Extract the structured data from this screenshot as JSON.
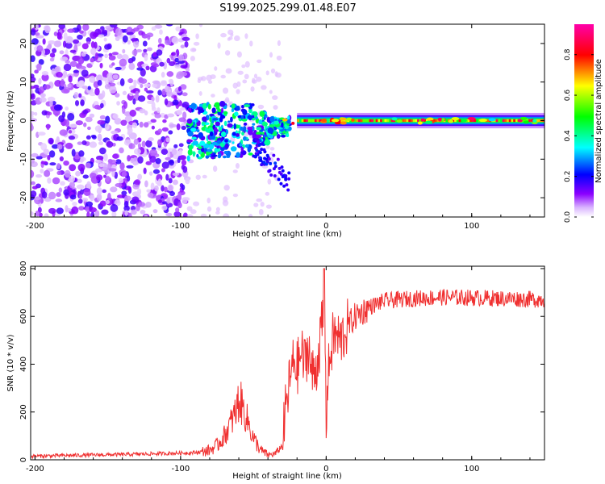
{
  "title": "S199.2025.299.01.48.E07",
  "chart_data": [
    {
      "type": "heatmap",
      "xlabel": "Height of straight line (km)",
      "ylabel": "Frequency (Hz)",
      "xlim": [
        -203,
        150
      ],
      "ylim": [
        -25,
        25
      ],
      "xticks": [
        -200,
        -100,
        0,
        100
      ],
      "xtick_labels": [
        "-200",
        "-100",
        "0",
        "100"
      ],
      "yticks": [
        -20,
        -10,
        0,
        10,
        20
      ],
      "ytick_labels": [
        "-20",
        "-10",
        "0",
        "10",
        "20"
      ],
      "colorbar": {
        "label": "Normalized spectral amplitude",
        "range": [
          0,
          0.95
        ],
        "ticks": [
          0,
          0.2,
          0.4,
          0.6,
          0.8
        ],
        "tick_labels": [
          "0.0",
          "0.2",
          "0.4",
          "0.6",
          "0.8"
        ],
        "colors": [
          "#ffffff",
          "#8b00ff",
          "#0000ff",
          "#00ffff",
          "#00ff00",
          "#ffff00",
          "#ff0000",
          "#ff00aa"
        ]
      },
      "regions": [
        {
          "name": "diffuse noise",
          "x": [
            -203,
            -95
          ],
          "freq": [
            -25,
            25
          ],
          "amplitude": 0.15
        },
        {
          "name": "transition cluster",
          "x": [
            -95,
            -25
          ],
          "freq": [
            -12,
            5
          ],
          "amplitude": 0.35
        },
        {
          "name": "narrow band",
          "x": [
            -25,
            150
          ],
          "freq": [
            -1.5,
            1.5
          ],
          "amplitude": 0.75
        }
      ]
    },
    {
      "type": "line",
      "xlabel": "Height of straight line (km)",
      "ylabel": "SNR (10 * v/v)",
      "xlim": [
        -203,
        150
      ],
      "ylim": [
        0,
        810
      ],
      "xticks": [
        -200,
        -100,
        0,
        100
      ],
      "xtick_labels": [
        "-200",
        "-100",
        "0",
        "100"
      ],
      "yticks": [
        0,
        200,
        400,
        600,
        800
      ],
      "ytick_labels": [
        "0",
        "200",
        "400",
        "600",
        "800"
      ],
      "color": "#f03030",
      "series": [
        {
          "name": "SNR",
          "x": [
            -203,
            -180,
            -160,
            -140,
            -120,
            -100,
            -90,
            -80,
            -75,
            -70,
            -65,
            -62,
            -60,
            -58,
            -55,
            -52,
            -50,
            -45,
            -40,
            -35,
            -30,
            -28,
            -25,
            -22,
            -20,
            -17,
            -15,
            -12,
            -10,
            -7,
            -5,
            -3,
            -1,
            0,
            2,
            5,
            10,
            15,
            20,
            25,
            30,
            40,
            50,
            60,
            80,
            100,
            120,
            140,
            150
          ],
          "y": [
            15,
            18,
            20,
            22,
            25,
            28,
            30,
            40,
            60,
            100,
            160,
            200,
            250,
            230,
            180,
            130,
            90,
            40,
            20,
            25,
            60,
            200,
            330,
            420,
            380,
            450,
            400,
            480,
            350,
            380,
            460,
            550,
            650,
            180,
            400,
            520,
            500,
            560,
            600,
            620,
            640,
            665,
            670,
            675,
            680,
            678,
            675,
            672,
            670
          ]
        }
      ]
    }
  ]
}
